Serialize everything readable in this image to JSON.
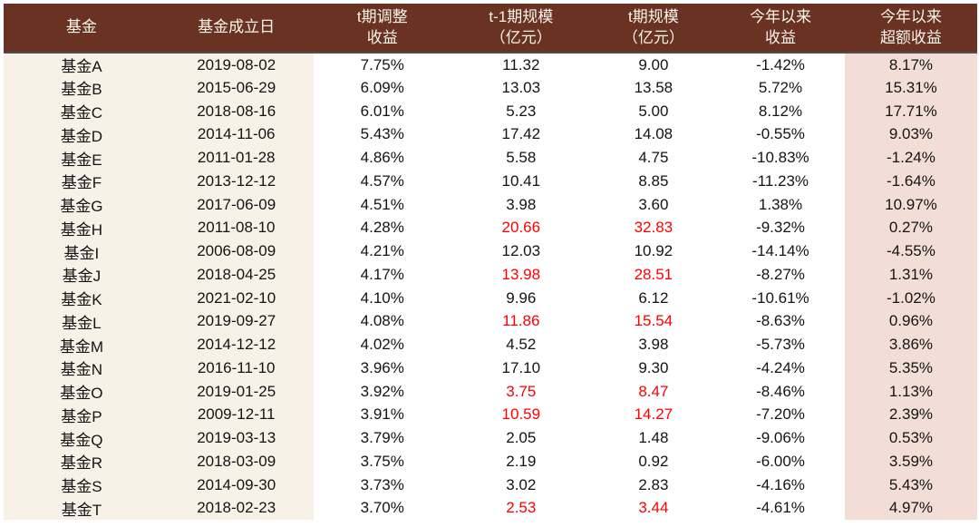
{
  "colors": {
    "header_bg": "#693222",
    "header_text": "#faf5ec",
    "cream_bg": "#f8f1e8",
    "pink_bg": "#f2ded6",
    "highlight_text": "#ff0000",
    "body_text": "#141414"
  },
  "table": {
    "columns": [
      {
        "key": "fund",
        "label": "基金"
      },
      {
        "key": "inception",
        "label": "基金成立日"
      },
      {
        "key": "t_adj_return",
        "label": "t期调整\n收益"
      },
      {
        "key": "t1_scale",
        "label": "t-1期规模\n（亿元）"
      },
      {
        "key": "t_scale",
        "label": "t期规模\n（亿元）"
      },
      {
        "key": "ytd_return",
        "label": "今年以来\n收益"
      },
      {
        "key": "ytd_excess",
        "label": "今年以来\n超额收益"
      }
    ],
    "rows": [
      {
        "fund": "基金A",
        "inception": "2019-08-02",
        "t_adj_return": "7.75%",
        "t1_scale": "11.32",
        "t_scale": "9.00",
        "ytd_return": "-1.42%",
        "ytd_excess": "8.17%",
        "scale_highlight": false
      },
      {
        "fund": "基金B",
        "inception": "2015-06-29",
        "t_adj_return": "6.09%",
        "t1_scale": "13.03",
        "t_scale": "13.58",
        "ytd_return": "5.72%",
        "ytd_excess": "15.31%",
        "scale_highlight": false
      },
      {
        "fund": "基金C",
        "inception": "2018-08-16",
        "t_adj_return": "6.01%",
        "t1_scale": "5.23",
        "t_scale": "5.00",
        "ytd_return": "8.12%",
        "ytd_excess": "17.71%",
        "scale_highlight": false
      },
      {
        "fund": "基金D",
        "inception": "2014-11-06",
        "t_adj_return": "5.43%",
        "t1_scale": "17.42",
        "t_scale": "14.08",
        "ytd_return": "-0.55%",
        "ytd_excess": "9.03%",
        "scale_highlight": false
      },
      {
        "fund": "基金E",
        "inception": "2011-01-28",
        "t_adj_return": "4.86%",
        "t1_scale": "5.58",
        "t_scale": "4.75",
        "ytd_return": "-10.83%",
        "ytd_excess": "-1.24%",
        "scale_highlight": false
      },
      {
        "fund": "基金F",
        "inception": "2013-12-12",
        "t_adj_return": "4.57%",
        "t1_scale": "10.41",
        "t_scale": "8.85",
        "ytd_return": "-11.23%",
        "ytd_excess": "-1.64%",
        "scale_highlight": false
      },
      {
        "fund": "基金G",
        "inception": "2017-06-09",
        "t_adj_return": "4.51%",
        "t1_scale": "3.98",
        "t_scale": "3.60",
        "ytd_return": "1.38%",
        "ytd_excess": "10.97%",
        "scale_highlight": false
      },
      {
        "fund": "基金H",
        "inception": "2011-08-10",
        "t_adj_return": "4.28%",
        "t1_scale": "20.66",
        "t_scale": "32.83",
        "ytd_return": "-9.32%",
        "ytd_excess": "0.27%",
        "scale_highlight": true
      },
      {
        "fund": "基金I",
        "inception": "2006-08-09",
        "t_adj_return": "4.21%",
        "t1_scale": "12.03",
        "t_scale": "10.92",
        "ytd_return": "-14.14%",
        "ytd_excess": "-4.55%",
        "scale_highlight": false
      },
      {
        "fund": "基金J",
        "inception": "2018-04-25",
        "t_adj_return": "4.17%",
        "t1_scale": "13.98",
        "t_scale": "28.51",
        "ytd_return": "-8.27%",
        "ytd_excess": "1.31%",
        "scale_highlight": true
      },
      {
        "fund": "基金K",
        "inception": "2021-02-10",
        "t_adj_return": "4.10%",
        "t1_scale": "9.96",
        "t_scale": "6.12",
        "ytd_return": "-10.61%",
        "ytd_excess": "-1.02%",
        "scale_highlight": false
      },
      {
        "fund": "基金L",
        "inception": "2019-09-27",
        "t_adj_return": "4.08%",
        "t1_scale": "11.86",
        "t_scale": "15.54",
        "ytd_return": "-8.63%",
        "ytd_excess": "0.96%",
        "scale_highlight": true
      },
      {
        "fund": "基金M",
        "inception": "2014-12-12",
        "t_adj_return": "4.02%",
        "t1_scale": "4.52",
        "t_scale": "3.98",
        "ytd_return": "-5.73%",
        "ytd_excess": "3.86%",
        "scale_highlight": false
      },
      {
        "fund": "基金N",
        "inception": "2016-11-10",
        "t_adj_return": "3.96%",
        "t1_scale": "17.10",
        "t_scale": "9.30",
        "ytd_return": "-4.24%",
        "ytd_excess": "5.35%",
        "scale_highlight": false
      },
      {
        "fund": "基金O",
        "inception": "2019-01-25",
        "t_adj_return": "3.92%",
        "t1_scale": "3.75",
        "t_scale": "8.47",
        "ytd_return": "-8.46%",
        "ytd_excess": "1.13%",
        "scale_highlight": true
      },
      {
        "fund": "基金P",
        "inception": "2009-12-11",
        "t_adj_return": "3.91%",
        "t1_scale": "10.59",
        "t_scale": "14.27",
        "ytd_return": "-7.20%",
        "ytd_excess": "2.39%",
        "scale_highlight": true
      },
      {
        "fund": "基金Q",
        "inception": "2019-03-13",
        "t_adj_return": "3.79%",
        "t1_scale": "2.05",
        "t_scale": "1.48",
        "ytd_return": "-9.06%",
        "ytd_excess": "0.53%",
        "scale_highlight": false
      },
      {
        "fund": "基金R",
        "inception": "2018-03-09",
        "t_adj_return": "3.75%",
        "t1_scale": "2.19",
        "t_scale": "0.92",
        "ytd_return": "-6.00%",
        "ytd_excess": "3.59%",
        "scale_highlight": false
      },
      {
        "fund": "基金S",
        "inception": "2014-09-30",
        "t_adj_return": "3.73%",
        "t1_scale": "3.02",
        "t_scale": "2.83",
        "ytd_return": "-4.16%",
        "ytd_excess": "5.43%",
        "scale_highlight": false
      },
      {
        "fund": "基金T",
        "inception": "2018-02-23",
        "t_adj_return": "3.70%",
        "t1_scale": "2.53",
        "t_scale": "3.44",
        "ytd_return": "-4.61%",
        "ytd_excess": "4.97%",
        "scale_highlight": true
      }
    ]
  }
}
